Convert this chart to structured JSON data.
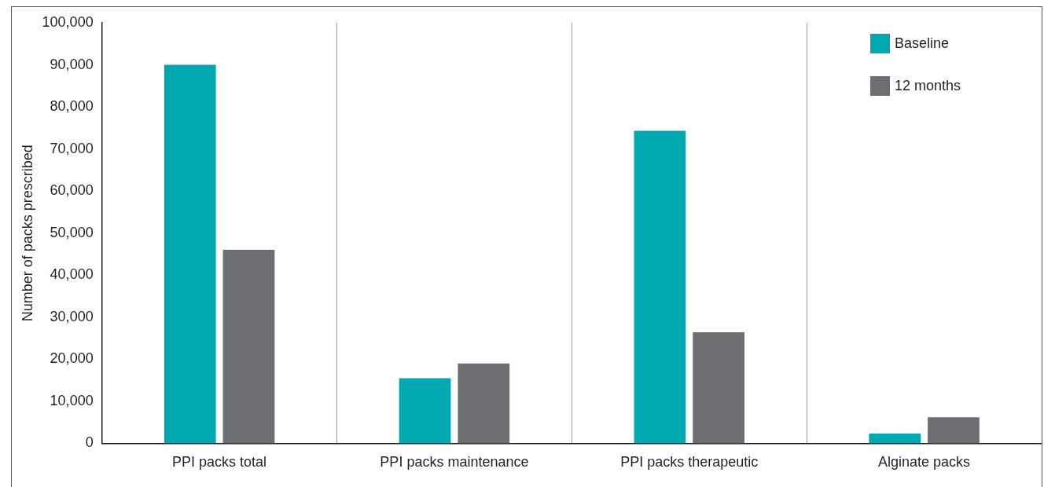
{
  "chart_data": {
    "type": "bar",
    "ylabel": "Number of packs prescribed",
    "categories": [
      "PPI packs total",
      "PPI packs maintenance",
      "PPI packs therapeutic",
      "Alginate packs"
    ],
    "series": [
      {
        "name": "Baseline",
        "color": "#00a9b0",
        "values": [
          90000,
          15500,
          74300,
          2300
        ]
      },
      {
        "name": "12 months",
        "color": "#6d6e71",
        "values": [
          46000,
          19000,
          26400,
          6200
        ]
      }
    ],
    "ylim": [
      0,
      100000
    ],
    "yticks": [
      {
        "value": 0,
        "label": "0"
      },
      {
        "value": 10000,
        "label": "10,000"
      },
      {
        "value": 20000,
        "label": "20,000"
      },
      {
        "value": 30000,
        "label": "30,000"
      },
      {
        "value": 40000,
        "label": "40,000"
      },
      {
        "value": 50000,
        "label": "50,000"
      },
      {
        "value": 60000,
        "label": "60,000"
      },
      {
        "value": 70000,
        "label": "70,000"
      },
      {
        "value": 80000,
        "label": "80,000"
      },
      {
        "value": 90000,
        "label": "90,000"
      },
      {
        "value": 100000,
        "label": "100,000"
      }
    ],
    "grid": "x",
    "legend": "top right"
  }
}
